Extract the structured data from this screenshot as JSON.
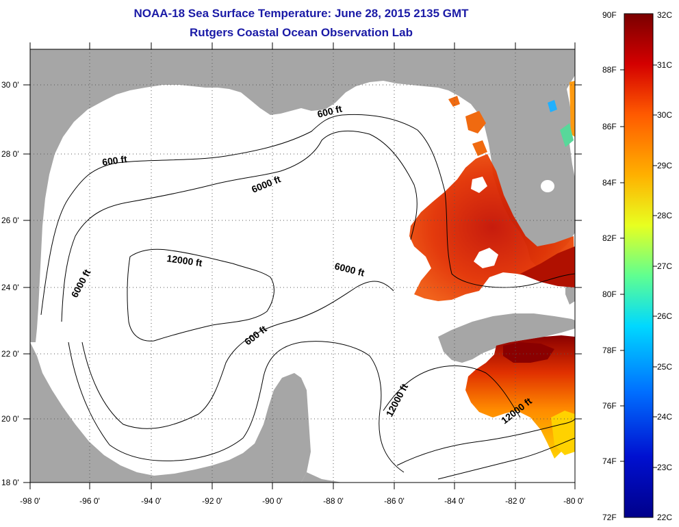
{
  "header": {
    "title": "NOAA-18 Sea Surface Temperature:  June 28, 2015 2135 GMT",
    "subtitle": "Rutgers Coastal Ocean Observation Lab"
  },
  "axes": {
    "lon_labels": [
      "-98 0'",
      "-96 0'",
      "-94 0'",
      "-92 0'",
      "-90 0'",
      "-88 0'",
      "-86 0'",
      "-84 0'",
      "-82 0'",
      "-80 0'"
    ],
    "lat_labels": [
      "30 0'",
      "28 0'",
      "26 0'",
      "24 0'",
      "22 0'",
      "20 0'",
      "18 0'"
    ]
  },
  "contours": {
    "labels": [
      "600 ft",
      "600 ft",
      "6000 ft",
      "12000 ft",
      "6000 ft",
      "6000 ft",
      "600 ft",
      "12000 ft",
      "12000 ft"
    ]
  },
  "colorbar": {
    "fahrenheit": [
      "90F",
      "88F",
      "86F",
      "84F",
      "82F",
      "80F",
      "78F",
      "76F",
      "74F",
      "72F"
    ],
    "celsius": [
      "32C",
      "31C",
      "30C",
      "29C",
      "28C",
      "27C",
      "26C",
      "25C",
      "24C",
      "23C",
      "22C"
    ],
    "colors": [
      "#7a0000",
      "#d40000",
      "#ff5a00",
      "#ffb000",
      "#e8ff20",
      "#60ff90",
      "#00d8ff",
      "#0070ff",
      "#0010d0",
      "#00008a"
    ]
  },
  "colors": {
    "land": "#a6a6a6",
    "water_no_data": "#ffffff",
    "title": "#1a1aa6"
  }
}
